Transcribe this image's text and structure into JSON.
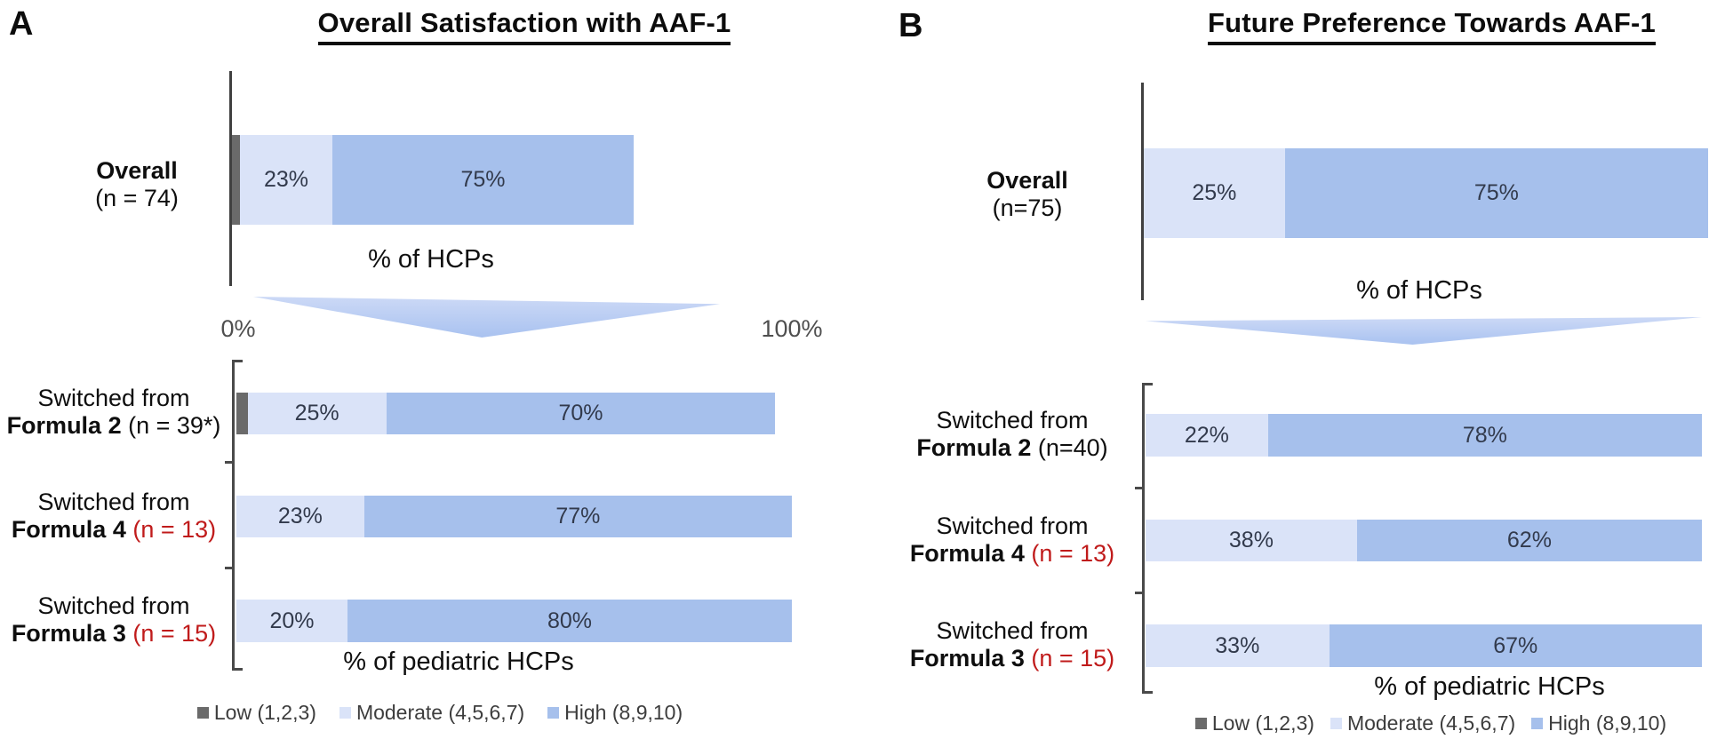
{
  "colors": {
    "low": "#6a6a6a",
    "moderate": "#dae3f8",
    "high": "#a6c0ec",
    "red_n": "#c01b1b",
    "triangle": "#a9c2f0",
    "axis": "#404040"
  },
  "legend": [
    {
      "key": "low",
      "label": "Low (1,2,3)"
    },
    {
      "key": "moderate",
      "label": "Moderate (4,5,6,7)"
    },
    {
      "key": "high",
      "label": "High (8,9,10)"
    }
  ],
  "panels": [
    {
      "letter": "A",
      "title": "Overall Satisfaction with AAF-1",
      "x_label_top": "% of HCPs",
      "x_min_label": "0%",
      "x_max_label": "100%",
      "x_label_bottom": "% of pediatric HCPs",
      "overall": {
        "line1": "Overall",
        "line2": "(n = 74)",
        "segments": [
          {
            "type": "low",
            "pct": 2,
            "label": ""
          },
          {
            "type": "moderate",
            "pct": 23,
            "label": "23%"
          },
          {
            "type": "high",
            "pct": 75,
            "label": "75%"
          }
        ]
      },
      "rows": [
        {
          "line1": "Switched from",
          "formula": "Formula 2",
          "n": "(n = 39*)",
          "n_red": false,
          "segments": [
            {
              "type": "low",
              "pct": 2,
              "label": ""
            },
            {
              "type": "moderate",
              "pct": 25,
              "label": "25%"
            },
            {
              "type": "high",
              "pct": 70,
              "label": "70%"
            }
          ]
        },
        {
          "line1": "Switched from",
          "formula": "Formula 4",
          "n": "(n = 13)",
          "n_red": true,
          "segments": [
            {
              "type": "moderate",
              "pct": 23,
              "label": "23%"
            },
            {
              "type": "high",
              "pct": 77,
              "label": "77%"
            }
          ]
        },
        {
          "line1": "Switched from",
          "formula": "Formula 3",
          "n": "(n = 15)",
          "n_red": true,
          "segments": [
            {
              "type": "moderate",
              "pct": 20,
              "label": "20%"
            },
            {
              "type": "high",
              "pct": 80,
              "label": "80%"
            }
          ]
        }
      ]
    },
    {
      "letter": "B",
      "title": "Future Preference Towards AAF-1",
      "x_label_top": "% of HCPs",
      "x_label_bottom": "% of pediatric HCPs",
      "overall": {
        "line1": "Overall",
        "line2": "(n=75)",
        "segments": [
          {
            "type": "moderate",
            "pct": 25,
            "label": "25%"
          },
          {
            "type": "high",
            "pct": 75,
            "label": "75%"
          }
        ]
      },
      "rows": [
        {
          "line1": "Switched from",
          "formula": "Formula 2",
          "n": "(n=40)",
          "n_red": false,
          "segments": [
            {
              "type": "moderate",
              "pct": 22,
              "label": "22%"
            },
            {
              "type": "high",
              "pct": 78,
              "label": "78%"
            }
          ]
        },
        {
          "line1": "Switched from",
          "formula": "Formula 4",
          "n": "(n = 13)",
          "n_red": true,
          "segments": [
            {
              "type": "moderate",
              "pct": 38,
              "label": "38%"
            },
            {
              "type": "high",
              "pct": 62,
              "label": "62%"
            }
          ]
        },
        {
          "line1": "Switched from",
          "formula": "Formula 3",
          "n": "(n = 15)",
          "n_red": true,
          "segments": [
            {
              "type": "moderate",
              "pct": 33,
              "label": "33%"
            },
            {
              "type": "high",
              "pct": 67,
              "label": "67%"
            }
          ]
        }
      ]
    }
  ],
  "chart_data": [
    {
      "type": "bar",
      "orientation": "horizontal",
      "stacked": true,
      "title": "Overall Satisfaction with AAF-1",
      "categories": [
        "Overall (n = 74)",
        "Switched from Formula 2 (n = 39*)",
        "Switched from Formula 4 (n = 13)",
        "Switched from Formula 3 (n = 15)"
      ],
      "series": [
        {
          "name": "Low (1,2,3)",
          "values": [
            2,
            2,
            0,
            0
          ]
        },
        {
          "name": "Moderate (4,5,6,7)",
          "values": [
            23,
            25,
            23,
            20
          ]
        },
        {
          "name": "High (8,9,10)",
          "values": [
            75,
            70,
            77,
            80
          ]
        }
      ],
      "xlabel_top_chart": "% of HCPs",
      "xlabel_bottom_chart": "% of pediatric HCPs",
      "xlim": [
        0,
        100
      ],
      "unit": "%",
      "legend_position": "bottom",
      "grid": false
    },
    {
      "type": "bar",
      "orientation": "horizontal",
      "stacked": true,
      "title": "Future Preference Towards AAF-1",
      "categories": [
        "Overall (n=75)",
        "Switched from Formula 2 (n=40)",
        "Switched from Formula 4 (n = 13)",
        "Switched from Formula 3 (n = 15)"
      ],
      "series": [
        {
          "name": "Low (1,2,3)",
          "values": [
            0,
            0,
            0,
            0
          ]
        },
        {
          "name": "Moderate (4,5,6,7)",
          "values": [
            25,
            22,
            38,
            33
          ]
        },
        {
          "name": "High (8,9,10)",
          "values": [
            75,
            78,
            62,
            67
          ]
        }
      ],
      "xlabel_top_chart": "% of HCPs",
      "xlabel_bottom_chart": "% of pediatric HCPs",
      "xlim": [
        0,
        100
      ],
      "unit": "%",
      "legend_position": "bottom",
      "grid": false
    }
  ]
}
